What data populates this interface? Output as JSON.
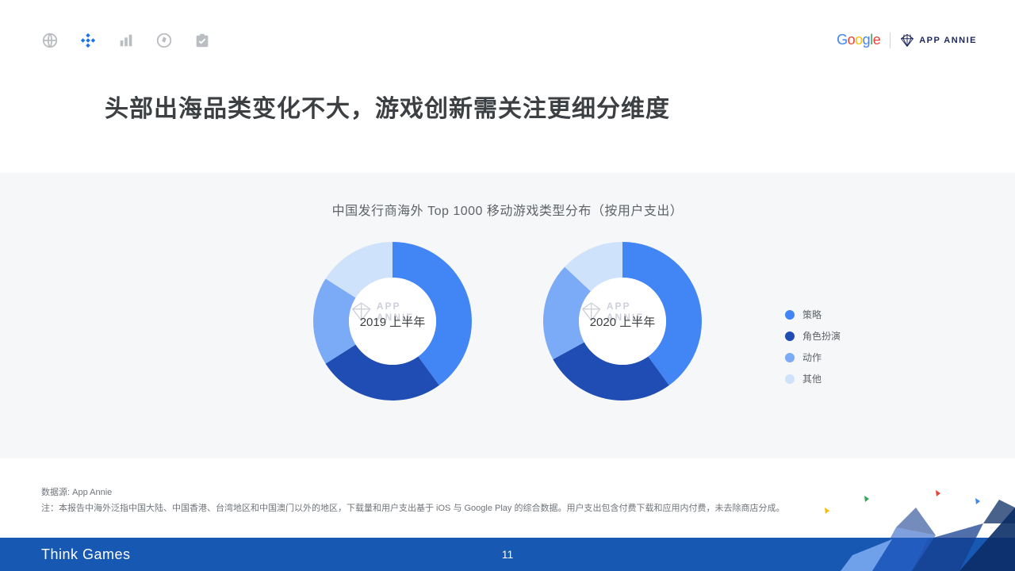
{
  "nav": {
    "inactive_color": "#babdc1",
    "active_color": "#1a73e8",
    "active_index": 1,
    "icons": [
      "globe-icon",
      "diamond-cluster-icon",
      "bars-icon",
      "compass-icon",
      "checklist-icon"
    ]
  },
  "logos": {
    "google": "Google",
    "appannie": "APP ANNIE",
    "appannie_color": "#1f285a"
  },
  "title": "头部出海品类变化不大，游戏创新需关注更细分维度",
  "subtitle": "中国发行商海外 Top 1000 移动游戏类型分布（按用户支出）",
  "colors": {
    "bg_band": "#f6f7f8",
    "series": {
      "strategy": "#4285f4",
      "rpg": "#1f4db3",
      "action": "#7baaf7",
      "other": "#cfe2fb"
    },
    "donut_hole": "#ffffff"
  },
  "legend": [
    {
      "label": "策略",
      "key": "strategy"
    },
    {
      "label": "角色扮演",
      "key": "rpg"
    },
    {
      "label": "动作",
      "key": "action"
    },
    {
      "label": "其他",
      "key": "other"
    }
  ],
  "donuts": [
    {
      "center_label": "2019 上半年",
      "slices": [
        {
          "key": "strategy",
          "value": 40
        },
        {
          "key": "rpg",
          "value": 26
        },
        {
          "key": "action",
          "value": 18
        },
        {
          "key": "other",
          "value": 16
        }
      ]
    },
    {
      "center_label": "2020 上半年",
      "slices": [
        {
          "key": "strategy",
          "value": 40
        },
        {
          "key": "rpg",
          "value": 27
        },
        {
          "key": "action",
          "value": 20
        },
        {
          "key": "other",
          "value": 13
        }
      ]
    }
  ],
  "donut_style": {
    "outer_radius": 100,
    "inner_radius": 55,
    "start_angle_deg": -90,
    "gap_deg": 0
  },
  "watermark": "APP ANNIE",
  "footnotes": {
    "source": "数据源: App Annie",
    "note": "注：本报告中海外泛指中国大陆、中国香港、台湾地区和中国澳门以外的地区，下载量和用户支出基于 iOS 与 Google Play 的综合数据。用户支出包含付费下载和应用内付费，未去除商店分成。"
  },
  "footer": {
    "title": "Think Games",
    "page": "11",
    "bg": "#1758b3",
    "deco_colors": [
      "#0b2d66",
      "#173f8f",
      "#2a5fc7",
      "#79a8ef"
    ]
  }
}
